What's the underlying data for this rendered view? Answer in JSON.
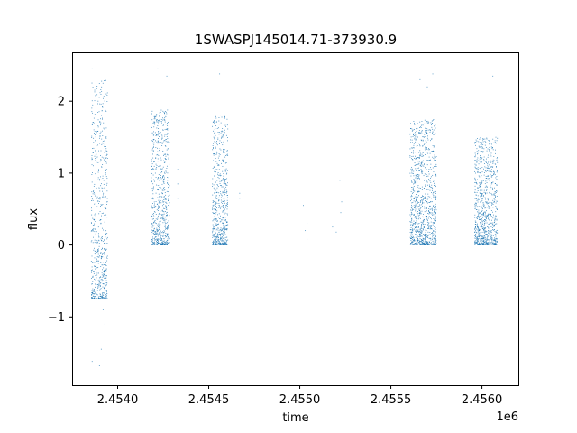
{
  "chart_data": {
    "type": "scatter",
    "title": "1SWASPJ145014.71-373930.9",
    "xlabel": "time",
    "ylabel": "flux",
    "x_offset_label": "1e6",
    "xlim": [
      2453750,
      2456200
    ],
    "ylim": [
      -1.95,
      2.68
    ],
    "grid": false,
    "legend": "none",
    "series_color": "#1f77b4",
    "xticks": [
      {
        "value": 2454000,
        "label": "2.4540"
      },
      {
        "value": 2454500,
        "label": "2.4545"
      },
      {
        "value": 2455000,
        "label": "2.4550"
      },
      {
        "value": 2455500,
        "label": "2.4555"
      },
      {
        "value": 2456000,
        "label": "2.4560"
      }
    ],
    "yticks": [
      {
        "value": -1,
        "label": "−1"
      },
      {
        "value": 0,
        "label": "0"
      },
      {
        "value": 1,
        "label": "1"
      },
      {
        "value": 2,
        "label": "2"
      }
    ],
    "segments": [
      {
        "x_start": 2453855,
        "x_end": 2453945,
        "y_min": -0.75,
        "y_max": 2.3,
        "density": 7
      },
      {
        "x_start": 2454185,
        "x_end": 2454285,
        "y_min": 0.0,
        "y_max": 1.9,
        "density": 7
      },
      {
        "x_start": 2454520,
        "x_end": 2454605,
        "y_min": 0.0,
        "y_max": 1.8,
        "density": 7
      },
      {
        "x_start": 2455605,
        "x_end": 2455750,
        "y_min": 0.0,
        "y_max": 1.75,
        "density": 7
      },
      {
        "x_start": 2455960,
        "x_end": 2456085,
        "y_min": 0.0,
        "y_max": 1.5,
        "density": 7
      }
    ],
    "sparse_points": [
      {
        "x": 2453860,
        "y": -1.62
      },
      {
        "x": 2453900,
        "y": -1.68
      },
      {
        "x": 2453910,
        "y": -1.45
      },
      {
        "x": 2453930,
        "y": -1.1
      },
      {
        "x": 2453920,
        "y": -0.9
      },
      {
        "x": 2453860,
        "y": 2.45
      },
      {
        "x": 2454220,
        "y": 2.45
      },
      {
        "x": 2454270,
        "y": 2.35
      },
      {
        "x": 2454560,
        "y": 2.38
      },
      {
        "x": 2454330,
        "y": 1.05
      },
      {
        "x": 2454330,
        "y": 0.85
      },
      {
        "x": 2454330,
        "y": 0.65
      },
      {
        "x": 2454670,
        "y": 0.72
      },
      {
        "x": 2454670,
        "y": 0.65
      },
      {
        "x": 2455020,
        "y": 0.55
      },
      {
        "x": 2455040,
        "y": 0.3
      },
      {
        "x": 2455040,
        "y": 0.08
      },
      {
        "x": 2455030,
        "y": 0.2
      },
      {
        "x": 2455180,
        "y": 0.25
      },
      {
        "x": 2455200,
        "y": 0.18
      },
      {
        "x": 2455220,
        "y": 0.9
      },
      {
        "x": 2455225,
        "y": 0.45
      },
      {
        "x": 2455230,
        "y": 0.6
      },
      {
        "x": 2455700,
        "y": 2.2
      },
      {
        "x": 2455730,
        "y": 2.38
      },
      {
        "x": 2455660,
        "y": 2.3
      },
      {
        "x": 2456060,
        "y": 2.35
      }
    ]
  }
}
